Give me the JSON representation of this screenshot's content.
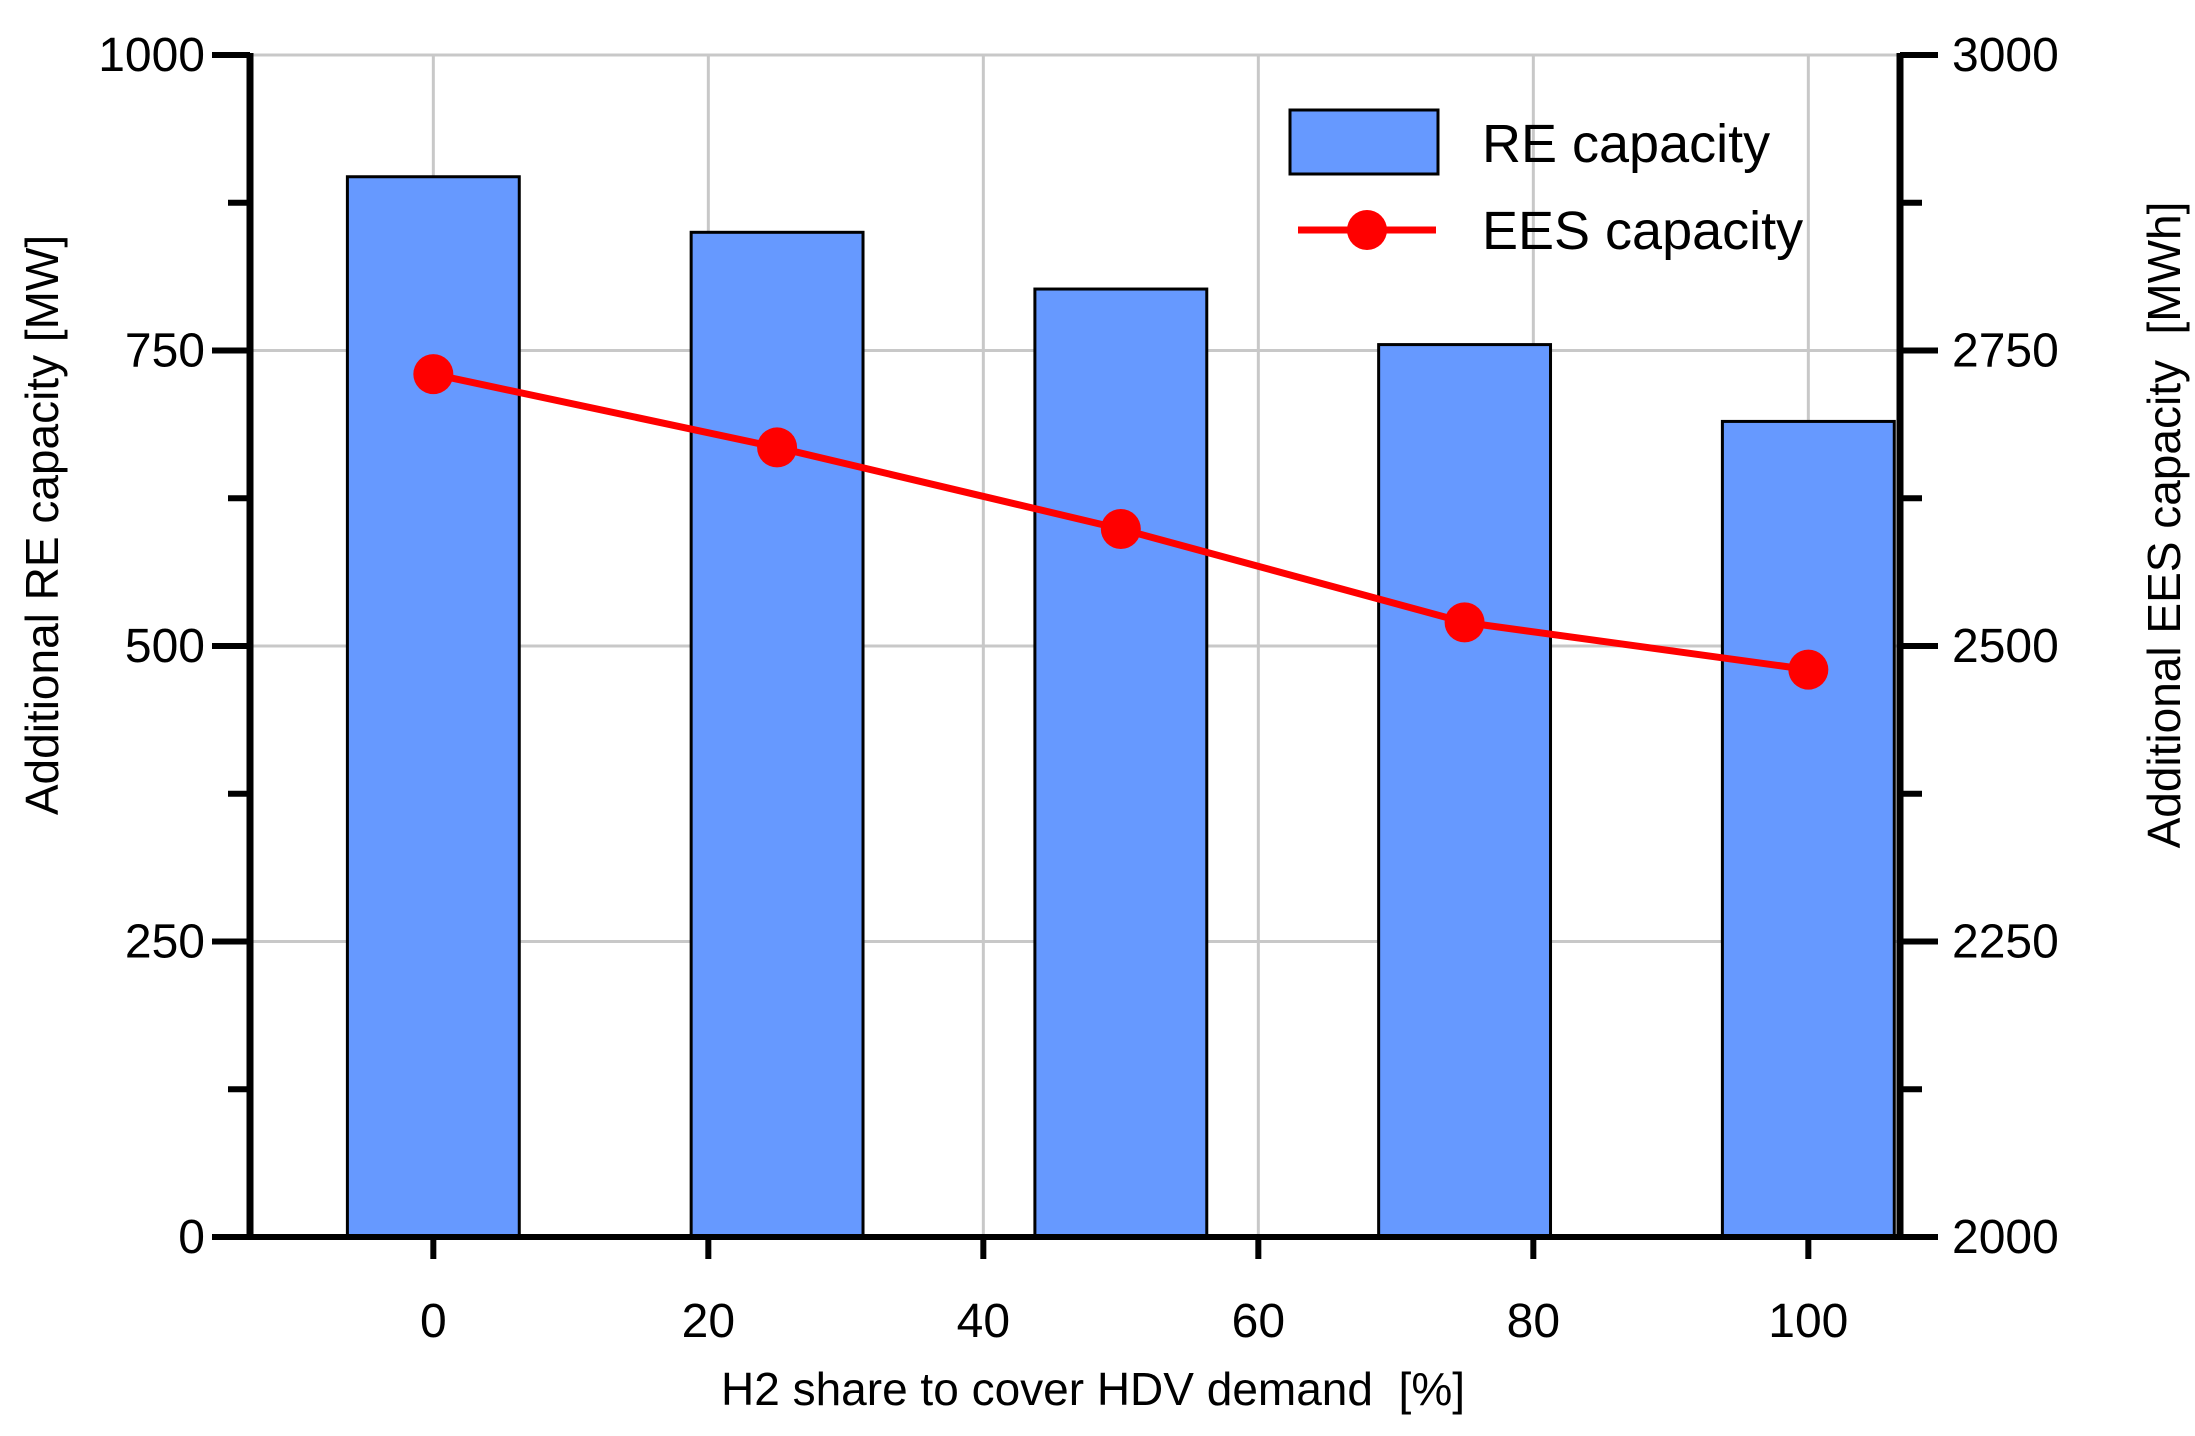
{
  "chart_data": {
    "type": "bar",
    "title": "",
    "xlabel": "H2 share to cover HDV demand  [%]",
    "ylabel_left": "Additional RE capacity [MW]",
    "ylabel_right": "Additional EES capacity  [MWh]",
    "x_ticks": [
      0,
      20,
      40,
      60,
      80,
      100
    ],
    "x_range": [
      -13.3333,
      106.6667
    ],
    "y_left_ticks": [
      0,
      250,
      500,
      750,
      1000
    ],
    "y_left_range": [
      0,
      1000
    ],
    "y_right_ticks": [
      2000,
      2250,
      2500,
      2750,
      3000
    ],
    "y_right_range": [
      2000,
      3000
    ],
    "grid": true,
    "legend_position": "top-right",
    "series": [
      {
        "name": "RE capacity",
        "kind": "bar",
        "axis": "left",
        "color": "#6699ff",
        "x": [
          0,
          25,
          50,
          75,
          100
        ],
        "values": [
          897,
          850,
          802,
          755,
          690
        ]
      },
      {
        "name": "EES capacity",
        "kind": "line",
        "axis": "right",
        "color": "#ff0000",
        "x": [
          0,
          25,
          50,
          75,
          100
        ],
        "values": [
          2730,
          2668,
          2599,
          2520,
          2480
        ]
      }
    ]
  }
}
